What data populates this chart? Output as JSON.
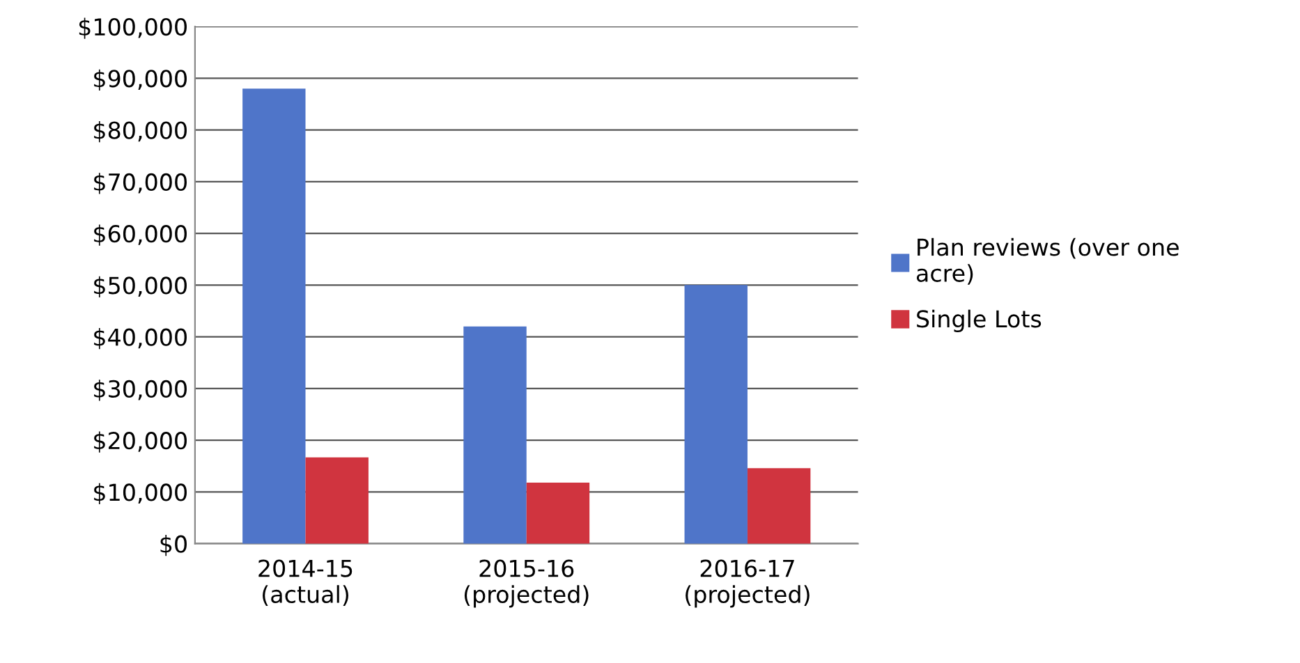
{
  "chart_data": {
    "type": "bar",
    "categories": [
      "2014-15\n(actual)",
      "2015-16\n(projected)",
      "2016-17\n(projected)"
    ],
    "series": [
      {
        "name": "Plan reviews (over one\nacre)",
        "color": "#4f75c9",
        "values": [
          88000,
          42000,
          50000
        ]
      },
      {
        "name": "Single Lots",
        "color": "#d0343f",
        "values": [
          16700,
          11800,
          14600
        ]
      }
    ],
    "ylim": [
      0,
      100000
    ],
    "yticks": [
      {
        "value": 0,
        "label": "$0"
      },
      {
        "value": 10000,
        "label": "$10,000"
      },
      {
        "value": 20000,
        "label": "$20,000"
      },
      {
        "value": 30000,
        "label": "$30,000"
      },
      {
        "value": 40000,
        "label": "$40,000"
      },
      {
        "value": 50000,
        "label": "$50,000"
      },
      {
        "value": 60000,
        "label": "$60,000"
      },
      {
        "value": 70000,
        "label": "$70,000"
      },
      {
        "value": 80000,
        "label": "$80,000"
      },
      {
        "value": 90000,
        "label": "$90,000"
      },
      {
        "value": 100000,
        "label": "$100,000"
      }
    ],
    "grid": "y",
    "legend": "right"
  }
}
